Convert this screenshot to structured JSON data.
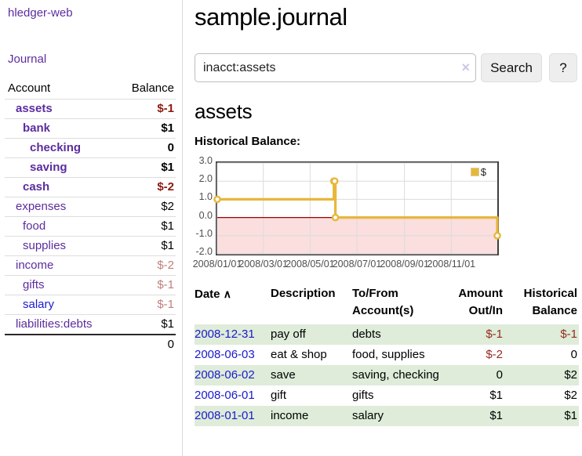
{
  "app": {
    "title": "hledger-web"
  },
  "sidebar": {
    "journal_label": "Journal",
    "table_headers": {
      "account": "Account",
      "balance": "Balance"
    },
    "accounts": [
      {
        "name": "assets",
        "balance": "$-1"
      },
      {
        "name": "bank",
        "balance": "$1"
      },
      {
        "name": "checking",
        "balance": "0"
      },
      {
        "name": "saving",
        "balance": "$1"
      },
      {
        "name": "cash",
        "balance": "$-2"
      },
      {
        "name": "expenses",
        "balance": "$2"
      },
      {
        "name": "food",
        "balance": "$1"
      },
      {
        "name": "supplies",
        "balance": "$1"
      },
      {
        "name": "income",
        "balance": "$-2"
      },
      {
        "name": "gifts",
        "balance": "$-1"
      },
      {
        "name": "salary",
        "balance": "$-1"
      },
      {
        "name": "liabilities:debts",
        "balance": "$1"
      }
    ],
    "total": "0"
  },
  "header": {
    "title": "sample.journal"
  },
  "search": {
    "value": "inacct:assets",
    "clear_icon": "×",
    "button_label": "Search",
    "help_label": "?"
  },
  "register": {
    "heading": "assets",
    "chart_title": "Historical Balance:",
    "table": {
      "headers": {
        "date": "Date",
        "sort_icon": "∧",
        "description": "Description",
        "account": "To/From Account(s)",
        "amount": "Amount Out/In",
        "balance": "Historical Balance"
      },
      "rows": [
        {
          "date": "2008-12-31",
          "description": "pay off",
          "accounts": "debts",
          "amount": "$-1",
          "balance": "$-1"
        },
        {
          "date": "2008-06-03",
          "description": "eat & shop",
          "accounts": "food, supplies",
          "amount": "$-2",
          "balance": "0"
        },
        {
          "date": "2008-06-02",
          "description": "save",
          "accounts": "saving, checking",
          "amount": "0",
          "balance": "$2"
        },
        {
          "date": "2008-06-01",
          "description": "gift",
          "accounts": "gifts",
          "amount": "$1",
          "balance": "$2"
        },
        {
          "date": "2008-01-01",
          "description": "income",
          "accounts": "salary",
          "amount": "$1",
          "balance": "$1"
        }
      ]
    }
  },
  "chart_data": {
    "type": "line",
    "line_style": "step",
    "title": "Historical Balance:",
    "series": [
      {
        "name": "$",
        "color": "#e7b73c",
        "points": [
          [
            "2008-01-01",
            1
          ],
          [
            "2008-06-01",
            2
          ],
          [
            "2008-06-02",
            2
          ],
          [
            "2008-06-03",
            0
          ],
          [
            "2008-12-31",
            -1
          ]
        ]
      }
    ],
    "xlim": [
      "2008-01-01",
      "2008-12-31"
    ],
    "ylim": [
      -2,
      3
    ],
    "x_ticks": [
      {
        "date": "2008-01-01",
        "label": "2008/01/01"
      },
      {
        "date": "2008-03-01",
        "label": "2008/03/01"
      },
      {
        "date": "2008-05-01",
        "label": "2008/05/01"
      },
      {
        "date": "2008-07-01",
        "label": "2008/07/01"
      },
      {
        "date": "2008-09-01",
        "label": "2008/09/01"
      },
      {
        "date": "2008-11-01",
        "label": "2008/11/01"
      }
    ],
    "y_ticks": [
      {
        "value": 3,
        "label": "3.0"
      },
      {
        "value": 2,
        "label": "2.0"
      },
      {
        "value": 1,
        "label": "1.0"
      },
      {
        "value": 0,
        "label": "0.0"
      },
      {
        "value": -1,
        "label": "-1.0"
      },
      {
        "value": -2,
        "label": "-2.0"
      }
    ],
    "legend_position": "top-right",
    "grid": true,
    "grid_color": "#dcdcdc",
    "zero_line_color": "#a00000",
    "negative_region_color": "#fbdede",
    "marker_fill": "#ffffff"
  },
  "colors": {
    "link_purple": "#5b2d9e",
    "link_blue": "#1a1acd",
    "negative_strong": "#8b1a10",
    "negative_soft": "#c27f7a",
    "negative_table": "#962a20",
    "row_stripe_green": "#deecd9",
    "chart_gold": "#e7b73c"
  }
}
